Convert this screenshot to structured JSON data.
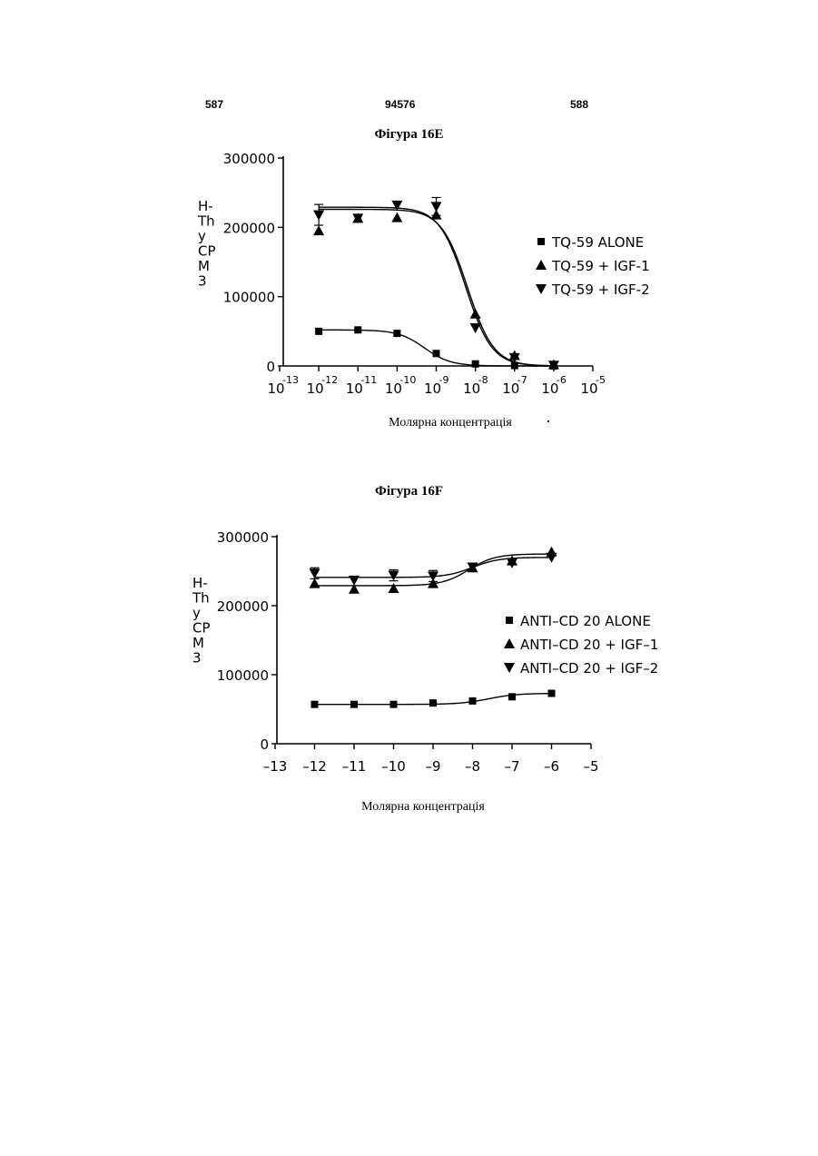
{
  "header": {
    "left_page": "587",
    "center_number": "94576",
    "right_page": "588"
  },
  "chart_data": [
    {
      "type": "line",
      "title": "Фігура 16E",
      "xlabel": "Молярна концентрація",
      "ylabel": [
        "H-",
        "Th",
        "y",
        "CP",
        "M",
        "3"
      ],
      "xscale": "log",
      "xlim": [
        -13,
        -5
      ],
      "ylim": [
        0,
        300000
      ],
      "xticks": [
        -13,
        -12,
        -11,
        -10,
        -9,
        -8,
        -7,
        -6,
        -5
      ],
      "xtick_base": "10",
      "xtick_exponents": [
        "-13",
        "-12",
        "-11",
        "-10",
        "-9",
        "-8",
        "-7",
        "-6",
        "-5"
      ],
      "yticks": [
        0,
        100000,
        200000,
        300000
      ],
      "ytick_labels": [
        "0",
        "100000",
        "200000",
        "300000"
      ],
      "legend_position": "right",
      "series": [
        {
          "name": "TQ-59  ALONE",
          "marker": "square",
          "x": [
            -12,
            -11,
            -10,
            -9,
            -8,
            -7,
            -6
          ],
          "y": [
            50000,
            52000,
            47000,
            18000,
            3000,
            500,
            0
          ],
          "fit": {
            "top": 52000,
            "bottom": 0,
            "ec50_log": -9.3,
            "slope": 1.3
          }
        },
        {
          "name": "TQ-59  +  IGF-1",
          "marker": "triangle-up",
          "x": [
            -12,
            -11,
            -10,
            -9,
            -8,
            -7,
            -6
          ],
          "y": [
            195000,
            213000,
            214000,
            218000,
            75000,
            15000,
            2000
          ],
          "fit": {
            "top": 226000,
            "bottom": 0,
            "ec50_log": -8.2,
            "slope": 1.3
          }
        },
        {
          "name": "TQ-59  +  IGF-2",
          "marker": "triangle-down",
          "x": [
            -12,
            -11,
            -10,
            -9,
            -8,
            -7,
            -6
          ],
          "y": [
            218000,
            213000,
            232000,
            230000,
            55000,
            12000,
            1000
          ],
          "errors": [
            15000,
            0,
            0,
            13000,
            0,
            0,
            0
          ],
          "fit": {
            "top": 229000,
            "bottom": 0,
            "ec50_log": -8.25,
            "slope": 1.3
          }
        }
      ]
    },
    {
      "type": "line",
      "title": "Фігура 16F",
      "xlabel": "Молярна концентрація",
      "ylabel": [
        "H-",
        "Th",
        "y",
        "CP",
        "M",
        "3"
      ],
      "xlim": [
        -13,
        -5
      ],
      "ylim": [
        0,
        300000
      ],
      "xticks": [
        -13,
        -12,
        -11,
        -10,
        -9,
        -8,
        -7,
        -6,
        -5
      ],
      "xtick_labels": [
        "–13",
        "–12",
        "–11",
        "–10",
        "–9",
        "–8",
        "–7",
        "–6",
        "–5"
      ],
      "yticks": [
        0,
        100000,
        200000,
        300000
      ],
      "ytick_labels": [
        "0",
        "100000",
        "200000",
        "300000"
      ],
      "legend_position": "right",
      "series": [
        {
          "name": "ANTI–CD  20  ALONE",
          "marker": "square",
          "x": [
            -12,
            -11,
            -10,
            -9,
            -8,
            -7,
            -6
          ],
          "y": [
            57000,
            57000,
            57000,
            59000,
            62000,
            68000,
            73000
          ],
          "fit": {
            "bottom": 57000,
            "top": 73000,
            "ec50_log": -7.6,
            "slope": 1.2
          }
        },
        {
          "name": "ANTI–CD  20  +  IGF–1",
          "marker": "triangle-up",
          "x": [
            -12,
            -11,
            -10,
            -9,
            -8,
            -7,
            -6
          ],
          "y": [
            232000,
            224000,
            225000,
            232000,
            255000,
            265000,
            278000
          ],
          "fit": {
            "bottom": 229000,
            "top": 275000,
            "ec50_log": -8.1,
            "slope": 1.3
          }
        },
        {
          "name": "ANTI–CD  20  +  IGF–2",
          "marker": "triangle-down",
          "x": [
            -12,
            -11,
            -10,
            -9,
            -8,
            -7,
            -6
          ],
          "y": [
            247000,
            237000,
            244000,
            243000,
            256000,
            262000,
            270000
          ],
          "errors": [
            8000,
            0,
            8000,
            8000,
            0,
            0,
            0
          ],
          "fit": {
            "bottom": 241000,
            "top": 270000,
            "ec50_log": -8.0,
            "slope": 1.3
          }
        }
      ]
    }
  ]
}
